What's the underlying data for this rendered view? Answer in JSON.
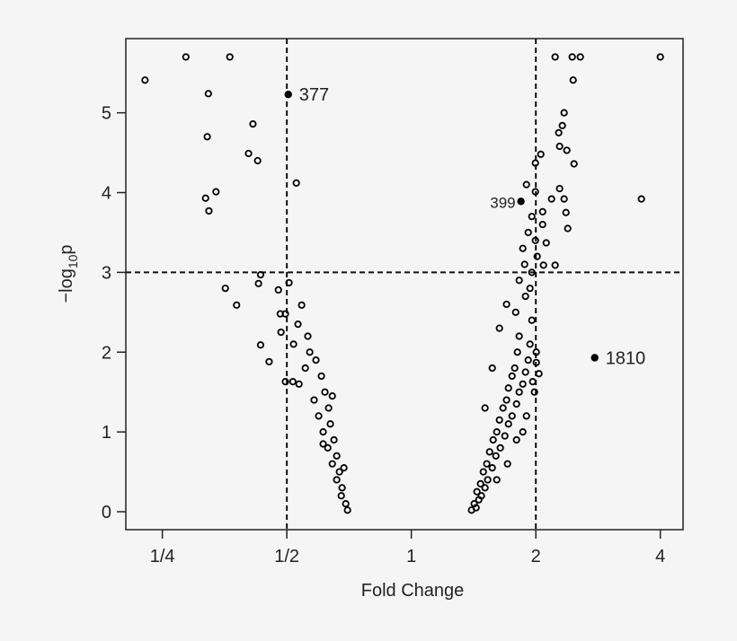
{
  "chart_data": {
    "type": "scatter",
    "xlabel": "Fold Change",
    "ylabel_parts": [
      "−log",
      "10",
      "p"
    ],
    "xscale": "log",
    "xlim": [
      0.204,
      4.54
    ],
    "ylim": [
      -0.225,
      5.93
    ],
    "xticks": [
      {
        "value": 0.25,
        "label": "1/4"
      },
      {
        "value": 0.5,
        "label": "1/2"
      },
      1,
      2,
      4
    ],
    "yticks": [
      0,
      1,
      2,
      3,
      4,
      5
    ],
    "reference_lines": {
      "x": [
        0.5,
        2
      ],
      "y": [
        3
      ]
    },
    "color": "#000000",
    "x": [
      0.227,
      0.285,
      0.364,
      0.323,
      0.321,
      0.414,
      0.404,
      0.425,
      0.337,
      0.318,
      0.324,
      0.527,
      0.432,
      0.427,
      0.355,
      0.378,
      0.432,
      0.453,
      0.506,
      0.477,
      0.482,
      0.496,
      0.543,
      0.484,
      0.496,
      0.517,
      0.568,
      0.588,
      0.554,
      0.606,
      0.535,
      0.618,
      0.582,
      0.631,
      0.597,
      0.637,
      0.612,
      0.65,
      0.628,
      0.66,
      0.644,
      0.67,
      0.66,
      0.68,
      0.677,
      0.694,
      0.701,
      0.562,
      0.532,
      0.519,
      0.644,
      0.612,
      0.687,
      2.227,
      2.449,
      2.562,
      4.0,
      2.462,
      2.341,
      2.318,
      2.272,
      2.283,
      2.377,
      2.474,
      2.056,
      1.995,
      3.6,
      2.283,
      2.183,
      2.341,
      2.365,
      2.389,
      1.898,
      1.995,
      2.077,
      2.119,
      2.227,
      2.087,
      2.005,
      2.035,
      1.965,
      1.398,
      1.434,
      1.419,
      1.456,
      1.477,
      1.441,
      1.507,
      1.47,
      1.53,
      1.493,
      1.569,
      1.522,
      1.601,
      1.546,
      1.641,
      1.577,
      1.683,
      1.609,
      1.717,
      1.633,
      1.752,
      1.666,
      1.796,
      1.699,
      1.823,
      1.717,
      1.86,
      1.752,
      1.888,
      1.778,
      1.917,
      1.805,
      1.936,
      1.823,
      1.633,
      1.956,
      1.788,
      1.699,
      1.888,
      1.936,
      1.823,
      1.956,
      1.879,
      2.015,
      1.86,
      1.995,
      1.917,
      2.077,
      1.956,
      1.898,
      1.796,
      1.985,
      1.708,
      1.86,
      2.005,
      1.507,
      1.569,
      1.609
    ],
    "values": [
      5.41,
      5.7,
      5.7,
      5.24,
      4.7,
      4.86,
      4.49,
      4.4,
      4.01,
      3.93,
      3.77,
      4.12,
      2.97,
      2.86,
      2.8,
      2.59,
      2.09,
      1.88,
      2.87,
      2.78,
      2.48,
      2.48,
      2.59,
      2.25,
      1.63,
      1.63,
      2.0,
      1.9,
      1.8,
      1.7,
      1.6,
      1.5,
      1.4,
      1.3,
      1.2,
      1.1,
      1.0,
      0.9,
      0.8,
      0.7,
      0.6,
      0.5,
      0.4,
      0.3,
      0.2,
      0.1,
      0.02,
      2.2,
      2.35,
      2.1,
      1.45,
      0.85,
      0.55,
      5.7,
      5.7,
      5.7,
      5.7,
      5.41,
      5.0,
      4.84,
      4.75,
      4.58,
      4.53,
      4.36,
      4.48,
      4.37,
      3.92,
      4.05,
      3.92,
      3.92,
      3.75,
      3.55,
      4.1,
      4.01,
      3.76,
      3.37,
      3.09,
      3.09,
      1.87,
      1.73,
      1.63,
      0.02,
      0.05,
      0.1,
      0.15,
      0.2,
      0.25,
      0.3,
      0.35,
      0.4,
      0.5,
      0.55,
      0.6,
      0.7,
      0.75,
      0.8,
      0.9,
      0.95,
      1.0,
      1.1,
      1.15,
      1.2,
      1.3,
      1.35,
      1.4,
      1.5,
      1.55,
      1.6,
      1.7,
      1.75,
      1.8,
      1.9,
      2.0,
      2.1,
      2.2,
      2.3,
      2.4,
      2.5,
      2.6,
      2.7,
      2.8,
      2.9,
      3.0,
      3.1,
      3.2,
      3.3,
      3.4,
      3.5,
      3.6,
      3.7,
      1.2,
      0.9,
      1.5,
      0.6,
      1.0,
      2.0,
      1.3,
      1.8,
      0.4
    ],
    "highlighted": {
      "x": [
        0.504,
        1.841,
        2.776
      ],
      "values": [
        5.23,
        3.89,
        1.93
      ],
      "labels": [
        "377",
        "399",
        "1810"
      ]
    }
  }
}
